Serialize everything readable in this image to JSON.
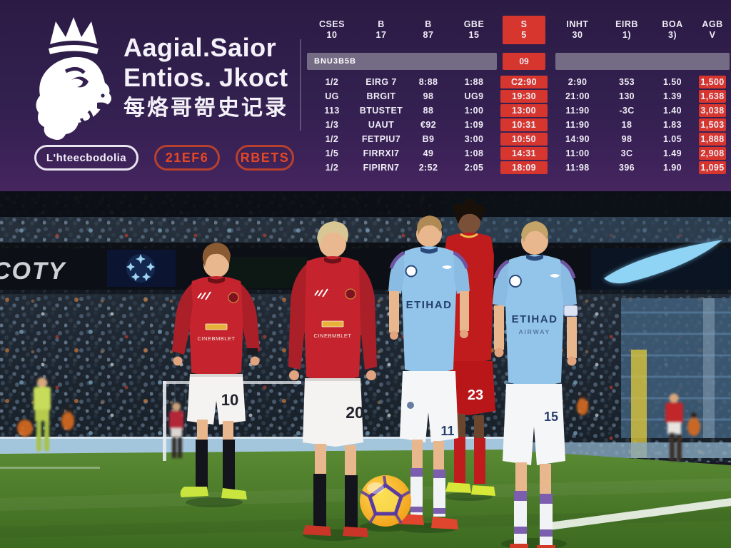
{
  "header": {
    "title_line1": "Aagial.Saior",
    "title_line2": "Entios. Jkoct",
    "title_cjk": "每烙哥哿史记录",
    "buttons": [
      {
        "label": "L'hteecbodolia",
        "variant": "outline-white"
      },
      {
        "label": "21EF6",
        "variant": "outline-red"
      },
      {
        "label": "RBETS",
        "variant": "outline-red"
      }
    ],
    "accent_purple": "#332050"
  },
  "table": {
    "columns": [
      {
        "label": "CSES",
        "sub": "10",
        "highlight": false
      },
      {
        "label": "B",
        "sub": "17",
        "highlight": false
      },
      {
        "label": "B",
        "sub": "87",
        "highlight": false
      },
      {
        "label": "GBE",
        "sub": "15",
        "highlight": false
      },
      {
        "label": "S",
        "sub": "5",
        "highlight": true
      },
      {
        "label": "INHT",
        "sub": "30",
        "highlight": false
      },
      {
        "label": "EIRB",
        "sub": "1)",
        "highlight": false
      },
      {
        "label": "BOA",
        "sub": "3)",
        "highlight": false
      },
      {
        "label": "AGB",
        "sub": "V",
        "highlight": false
      }
    ],
    "divider": {
      "label": "BNU3B5B",
      "value": "09"
    },
    "rows": [
      [
        "1/2",
        "EIRG 7",
        "8:88",
        "1:88",
        "C2:90",
        "2:90",
        "353",
        "1.50",
        "1,500"
      ],
      [
        "UG",
        "BRGIT",
        "98",
        "UG9",
        "19:30",
        "21:00",
        "130",
        "1.39",
        "1,638"
      ],
      [
        "113",
        "BTUSTET",
        "88",
        "1:00",
        "13:00",
        "11:90",
        "-3C",
        "1.40",
        "3,038"
      ],
      [
        "1/3",
        "UAUT",
        "€92",
        "1:09",
        "10:31",
        "11:90",
        "18",
        "1.83",
        "1,503"
      ],
      [
        "1/2",
        "FETPIU7",
        "B9",
        "3:00",
        "10:50",
        "14:90",
        "98",
        "1.05",
        "1,888"
      ],
      [
        "1/5",
        "FIRRXI7",
        "49",
        "1:08",
        "14:31",
        "11:00",
        "3C",
        "1.49",
        "2,908"
      ],
      [
        "1/2",
        "FIPIRN7",
        "2:52",
        "2:05",
        "18:09",
        "11:98",
        "396",
        "1.90",
        "1,095"
      ]
    ],
    "highlight_columns": [
      4,
      8
    ],
    "colors": {
      "highlight_red": "#d6362e",
      "divider_gray": "#746b85"
    }
  },
  "photo": {
    "led_banner_text": "COTY",
    "city_sponsor": "ETIHAD",
    "city_sponsor_sub": "AIRWAY",
    "utd_sponsor": "CINEBMBLET",
    "numbers": {
      "utd_left": "10",
      "utd_center": "20",
      "city_center": "11",
      "liverpool": "23",
      "city_right": "15"
    }
  }
}
